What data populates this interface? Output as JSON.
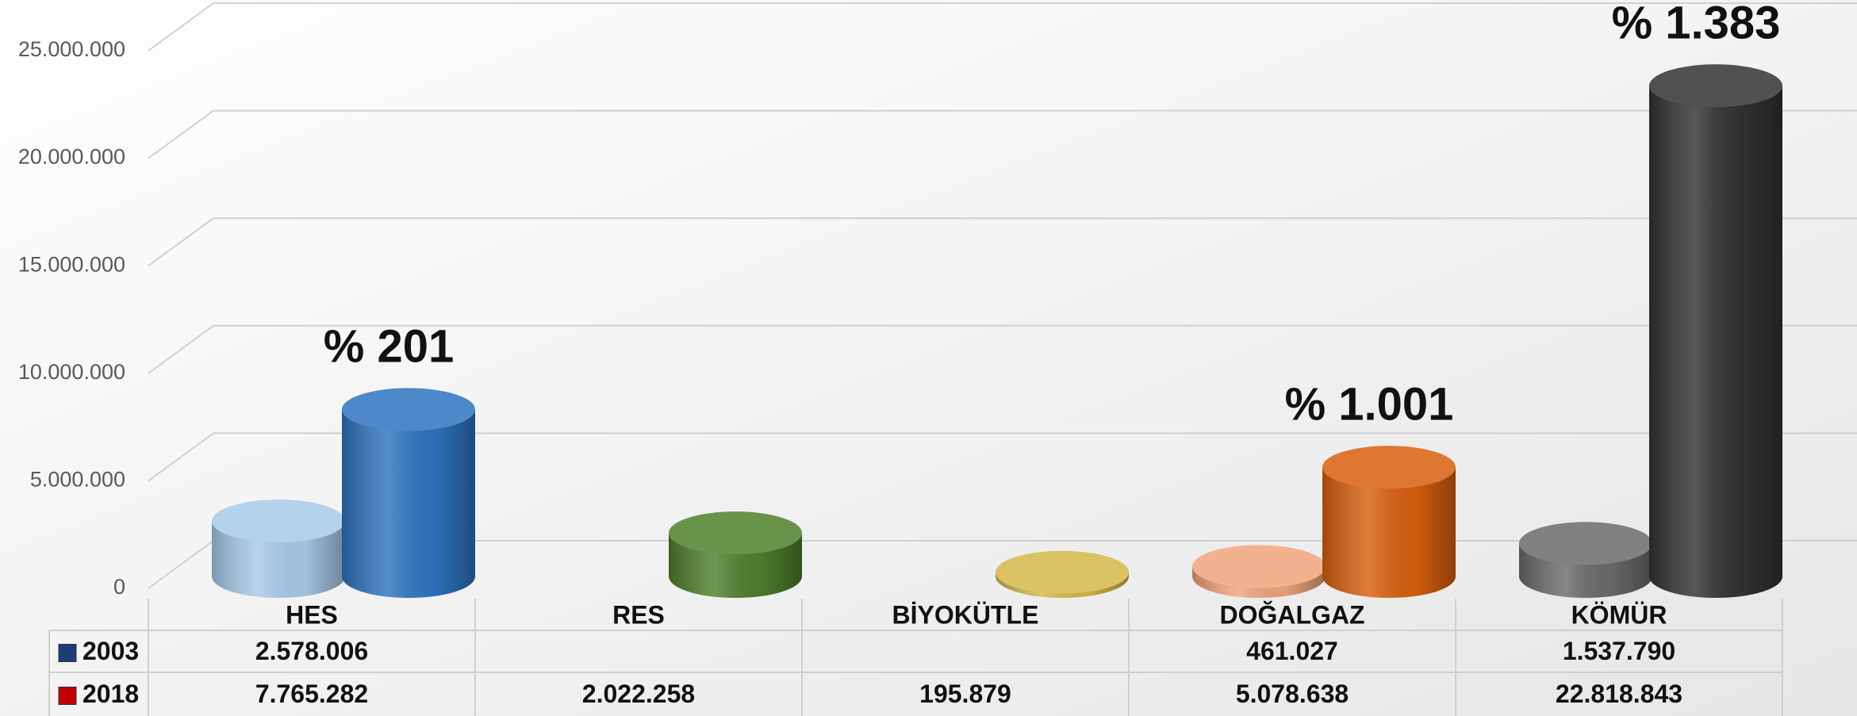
{
  "chart_data": {
    "type": "cylinder3d",
    "categories": [
      "HES",
      "RES",
      "BİYOKÜTLE",
      "DOĞALGAZ",
      "KÖMÜR"
    ],
    "series": [
      {
        "name": "2003",
        "color": "#1f3b78",
        "values": [
          2578006,
          null,
          null,
          461027,
          1537790
        ],
        "value_labels": [
          "2.578.006",
          null,
          null,
          "461.027",
          "1.537.790"
        ],
        "colors": [
          "#a9cbea",
          null,
          null,
          "#f0a57c",
          "#6b6b6b"
        ]
      },
      {
        "name": "2018",
        "color": "#c00000",
        "values": [
          7765282,
          2022258,
          195879,
          5078638,
          22818843
        ],
        "value_labels": [
          "7.765.282",
          "2.022.258",
          "195.879",
          "5.078.638",
          "22.818.843"
        ],
        "colors": [
          "#2e75c0",
          "#4f7f2c",
          "#d4b84a",
          "#d9600f",
          "#333333"
        ]
      }
    ],
    "annotations": [
      "% 201",
      null,
      null,
      "% 1.001",
      "% 1.383"
    ],
    "ylim": [
      0,
      25000000
    ],
    "yticks": [
      0,
      {
        "value": 5000000,
        "label": "5.000.000"
      },
      {
        "value": 10000000,
        "label": "10.000.000"
      },
      {
        "value": 15000000,
        "label": "15.000.000"
      },
      {
        "value": 20000000,
        "label": "20.000.000"
      },
      {
        "value": 25000000,
        "label": "25.000.000"
      }
    ],
    "grid": true,
    "data_table": true
  }
}
